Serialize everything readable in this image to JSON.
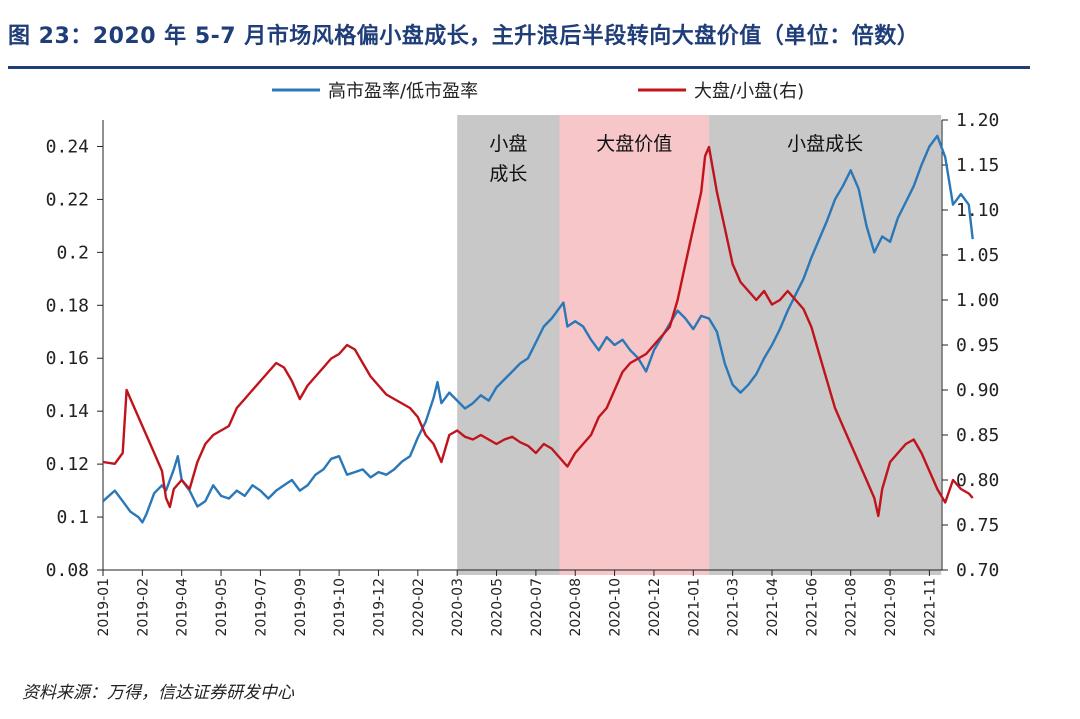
{
  "title": "图 23：2020 年 5-7 月市场风格偏小盘成长，主升浪后半段转向大盘价值（单位：倍数）",
  "source": "资料来源：万得，信达证券研发中心",
  "chart_data": {
    "type": "line",
    "title": "图 23：2020 年 5-7 月市场风格偏小盘成长，主升浪后半段转向大盘价值（单位：倍数）",
    "x_ticks": [
      "2019-01",
      "2019-02",
      "2019-04",
      "2019-05",
      "2019-07",
      "2019-09",
      "2019-10",
      "2019-12",
      "2020-02",
      "2020-03",
      "2020-05",
      "2020-07",
      "2020-08",
      "2020-10",
      "2020-12",
      "2021-01",
      "2021-03",
      "2021-04",
      "2021-06",
      "2021-08",
      "2021-09",
      "2021-11"
    ],
    "y_left": {
      "min": 0.08,
      "max": 0.25,
      "ticks": [
        "0.08",
        "0.1",
        "0.12",
        "0.14",
        "0.16",
        "0.18",
        "0.2",
        "0.22",
        "0.24"
      ]
    },
    "y_right": {
      "min": 0.7,
      "max": 1.2,
      "ticks": [
        "0.70",
        "0.75",
        "0.80",
        "0.85",
        "0.90",
        "0.95",
        "1.00",
        "1.05",
        "1.10",
        "1.15",
        "1.20"
      ]
    },
    "regions": [
      {
        "label_lines": [
          "小盘",
          "成长"
        ],
        "x_start": 9,
        "x_end": 11.6,
        "color": "#c8c8c8"
      },
      {
        "label_lines": [
          "大盘价值"
        ],
        "x_start": 11.6,
        "x_end": 15.4,
        "color": "#f6c6c8"
      },
      {
        "label_lines": [
          "小盘成长"
        ],
        "x_start": 15.4,
        "x_end": 21.3,
        "color": "#c8c8c8"
      }
    ],
    "series": [
      {
        "name": "高市盈率/低市盈率",
        "axis": "left",
        "color": "#2a78b8",
        "points": [
          [
            0,
            0.106
          ],
          [
            0.3,
            0.11
          ],
          [
            0.5,
            0.106
          ],
          [
            0.7,
            0.102
          ],
          [
            0.9,
            0.1
          ],
          [
            1.0,
            0.098
          ],
          [
            1.1,
            0.101
          ],
          [
            1.3,
            0.109
          ],
          [
            1.5,
            0.112
          ],
          [
            1.6,
            0.11
          ],
          [
            1.8,
            0.118
          ],
          [
            1.9,
            0.123
          ],
          [
            2.0,
            0.114
          ],
          [
            2.2,
            0.11
          ],
          [
            2.4,
            0.104
          ],
          [
            2.6,
            0.106
          ],
          [
            2.8,
            0.112
          ],
          [
            3.0,
            0.108
          ],
          [
            3.2,
            0.107
          ],
          [
            3.4,
            0.11
          ],
          [
            3.6,
            0.108
          ],
          [
            3.8,
            0.112
          ],
          [
            4.0,
            0.11
          ],
          [
            4.2,
            0.107
          ],
          [
            4.4,
            0.11
          ],
          [
            4.6,
            0.112
          ],
          [
            4.8,
            0.114
          ],
          [
            5.0,
            0.11
          ],
          [
            5.2,
            0.112
          ],
          [
            5.4,
            0.116
          ],
          [
            5.6,
            0.118
          ],
          [
            5.8,
            0.122
          ],
          [
            6.0,
            0.123
          ],
          [
            6.2,
            0.116
          ],
          [
            6.4,
            0.117
          ],
          [
            6.6,
            0.118
          ],
          [
            6.8,
            0.115
          ],
          [
            7.0,
            0.117
          ],
          [
            7.2,
            0.116
          ],
          [
            7.4,
            0.118
          ],
          [
            7.6,
            0.121
          ],
          [
            7.8,
            0.123
          ],
          [
            8.0,
            0.13
          ],
          [
            8.2,
            0.136
          ],
          [
            8.4,
            0.145
          ],
          [
            8.5,
            0.151
          ],
          [
            8.6,
            0.143
          ],
          [
            8.8,
            0.147
          ],
          [
            9.0,
            0.144
          ],
          [
            9.2,
            0.141
          ],
          [
            9.4,
            0.143
          ],
          [
            9.6,
            0.146
          ],
          [
            9.8,
            0.144
          ],
          [
            10.0,
            0.149
          ],
          [
            10.2,
            0.152
          ],
          [
            10.4,
            0.155
          ],
          [
            10.6,
            0.158
          ],
          [
            10.8,
            0.16
          ],
          [
            11.0,
            0.166
          ],
          [
            11.2,
            0.172
          ],
          [
            11.4,
            0.175
          ],
          [
            11.5,
            0.177
          ],
          [
            11.7,
            0.181
          ],
          [
            11.8,
            0.172
          ],
          [
            12.0,
            0.174
          ],
          [
            12.2,
            0.172
          ],
          [
            12.4,
            0.167
          ],
          [
            12.6,
            0.163
          ],
          [
            12.8,
            0.168
          ],
          [
            13.0,
            0.165
          ],
          [
            13.2,
            0.167
          ],
          [
            13.4,
            0.163
          ],
          [
            13.6,
            0.16
          ],
          [
            13.8,
            0.155
          ],
          [
            14.0,
            0.163
          ],
          [
            14.2,
            0.168
          ],
          [
            14.4,
            0.173
          ],
          [
            14.6,
            0.178
          ],
          [
            14.8,
            0.175
          ],
          [
            15.0,
            0.171
          ],
          [
            15.2,
            0.176
          ],
          [
            15.4,
            0.175
          ],
          [
            15.6,
            0.17
          ],
          [
            15.8,
            0.158
          ],
          [
            16.0,
            0.15
          ],
          [
            16.2,
            0.147
          ],
          [
            16.4,
            0.15
          ],
          [
            16.6,
            0.154
          ],
          [
            16.8,
            0.16
          ],
          [
            17.0,
            0.165
          ],
          [
            17.2,
            0.171
          ],
          [
            17.4,
            0.178
          ],
          [
            17.6,
            0.184
          ],
          [
            17.8,
            0.19
          ],
          [
            18.0,
            0.198
          ],
          [
            18.2,
            0.205
          ],
          [
            18.4,
            0.212
          ],
          [
            18.6,
            0.22
          ],
          [
            18.8,
            0.225
          ],
          [
            19.0,
            0.231
          ],
          [
            19.2,
            0.224
          ],
          [
            19.4,
            0.21
          ],
          [
            19.6,
            0.2
          ],
          [
            19.8,
            0.206
          ],
          [
            20.0,
            0.204
          ],
          [
            20.2,
            0.213
          ],
          [
            20.4,
            0.219
          ],
          [
            20.6,
            0.225
          ],
          [
            20.8,
            0.233
          ],
          [
            21.0,
            0.24
          ],
          [
            21.2,
            0.244
          ],
          [
            21.4,
            0.236
          ],
          [
            21.6,
            0.218
          ],
          [
            21.8,
            0.222
          ],
          [
            22.0,
            0.218
          ],
          [
            22.1,
            0.205
          ]
        ]
      },
      {
        "name": "大盘/小盘(右)",
        "axis": "right",
        "color": "#c0141c",
        "points": [
          [
            0,
            0.82
          ],
          [
            0.3,
            0.818
          ],
          [
            0.5,
            0.83
          ],
          [
            0.6,
            0.9
          ],
          [
            0.7,
            0.89
          ],
          [
            0.9,
            0.87
          ],
          [
            1.1,
            0.85
          ],
          [
            1.3,
            0.83
          ],
          [
            1.5,
            0.81
          ],
          [
            1.6,
            0.78
          ],
          [
            1.7,
            0.77
          ],
          [
            1.8,
            0.79
          ],
          [
            2.0,
            0.8
          ],
          [
            2.2,
            0.79
          ],
          [
            2.4,
            0.82
          ],
          [
            2.6,
            0.84
          ],
          [
            2.8,
            0.85
          ],
          [
            3.0,
            0.855
          ],
          [
            3.2,
            0.86
          ],
          [
            3.4,
            0.88
          ],
          [
            3.6,
            0.89
          ],
          [
            3.8,
            0.9
          ],
          [
            4.0,
            0.91
          ],
          [
            4.2,
            0.92
          ],
          [
            4.4,
            0.93
          ],
          [
            4.6,
            0.925
          ],
          [
            4.8,
            0.91
          ],
          [
            5.0,
            0.89
          ],
          [
            5.2,
            0.905
          ],
          [
            5.4,
            0.915
          ],
          [
            5.6,
            0.925
          ],
          [
            5.8,
            0.935
          ],
          [
            6.0,
            0.94
          ],
          [
            6.2,
            0.95
          ],
          [
            6.4,
            0.945
          ],
          [
            6.6,
            0.93
          ],
          [
            6.8,
            0.915
          ],
          [
            7.0,
            0.905
          ],
          [
            7.2,
            0.895
          ],
          [
            7.4,
            0.89
          ],
          [
            7.6,
            0.885
          ],
          [
            7.8,
            0.88
          ],
          [
            8.0,
            0.87
          ],
          [
            8.2,
            0.85
          ],
          [
            8.4,
            0.84
          ],
          [
            8.6,
            0.82
          ],
          [
            8.8,
            0.85
          ],
          [
            9.0,
            0.855
          ],
          [
            9.2,
            0.848
          ],
          [
            9.4,
            0.845
          ],
          [
            9.6,
            0.85
          ],
          [
            9.8,
            0.845
          ],
          [
            10.0,
            0.84
          ],
          [
            10.2,
            0.845
          ],
          [
            10.4,
            0.848
          ],
          [
            10.6,
            0.842
          ],
          [
            10.8,
            0.838
          ],
          [
            11.0,
            0.83
          ],
          [
            11.2,
            0.84
          ],
          [
            11.4,
            0.835
          ],
          [
            11.6,
            0.825
          ],
          [
            11.8,
            0.815
          ],
          [
            12.0,
            0.83
          ],
          [
            12.2,
            0.84
          ],
          [
            12.4,
            0.85
          ],
          [
            12.6,
            0.87
          ],
          [
            12.8,
            0.88
          ],
          [
            13.0,
            0.9
          ],
          [
            13.2,
            0.92
          ],
          [
            13.4,
            0.93
          ],
          [
            13.6,
            0.935
          ],
          [
            13.8,
            0.94
          ],
          [
            14.0,
            0.95
          ],
          [
            14.2,
            0.96
          ],
          [
            14.4,
            0.97
          ],
          [
            14.6,
            1.0
          ],
          [
            14.8,
            1.04
          ],
          [
            15.0,
            1.08
          ],
          [
            15.2,
            1.12
          ],
          [
            15.3,
            1.16
          ],
          [
            15.4,
            1.17
          ],
          [
            15.6,
            1.12
          ],
          [
            15.8,
            1.08
          ],
          [
            16.0,
            1.04
          ],
          [
            16.2,
            1.02
          ],
          [
            16.4,
            1.01
          ],
          [
            16.6,
            1.0
          ],
          [
            16.8,
            1.01
          ],
          [
            17.0,
            0.995
          ],
          [
            17.2,
            1.0
          ],
          [
            17.4,
            1.01
          ],
          [
            17.6,
            1.0
          ],
          [
            17.8,
            0.99
          ],
          [
            18.0,
            0.97
          ],
          [
            18.2,
            0.94
          ],
          [
            18.4,
            0.91
          ],
          [
            18.6,
            0.88
          ],
          [
            18.8,
            0.86
          ],
          [
            19.0,
            0.84
          ],
          [
            19.2,
            0.82
          ],
          [
            19.4,
            0.8
          ],
          [
            19.6,
            0.78
          ],
          [
            19.7,
            0.76
          ],
          [
            19.8,
            0.79
          ],
          [
            20.0,
            0.82
          ],
          [
            20.2,
            0.83
          ],
          [
            20.4,
            0.84
          ],
          [
            20.6,
            0.845
          ],
          [
            20.8,
            0.83
          ],
          [
            21.0,
            0.81
          ],
          [
            21.2,
            0.79
          ],
          [
            21.4,
            0.775
          ],
          [
            21.6,
            0.8
          ],
          [
            21.8,
            0.79
          ],
          [
            22.0,
            0.785
          ],
          [
            22.1,
            0.78
          ]
        ]
      }
    ],
    "legend": [
      {
        "name": "高市盈率/低市盈率",
        "color": "#2a78b8"
      },
      {
        "name": "大盘/小盘(右)",
        "color": "#c0141c"
      }
    ]
  }
}
